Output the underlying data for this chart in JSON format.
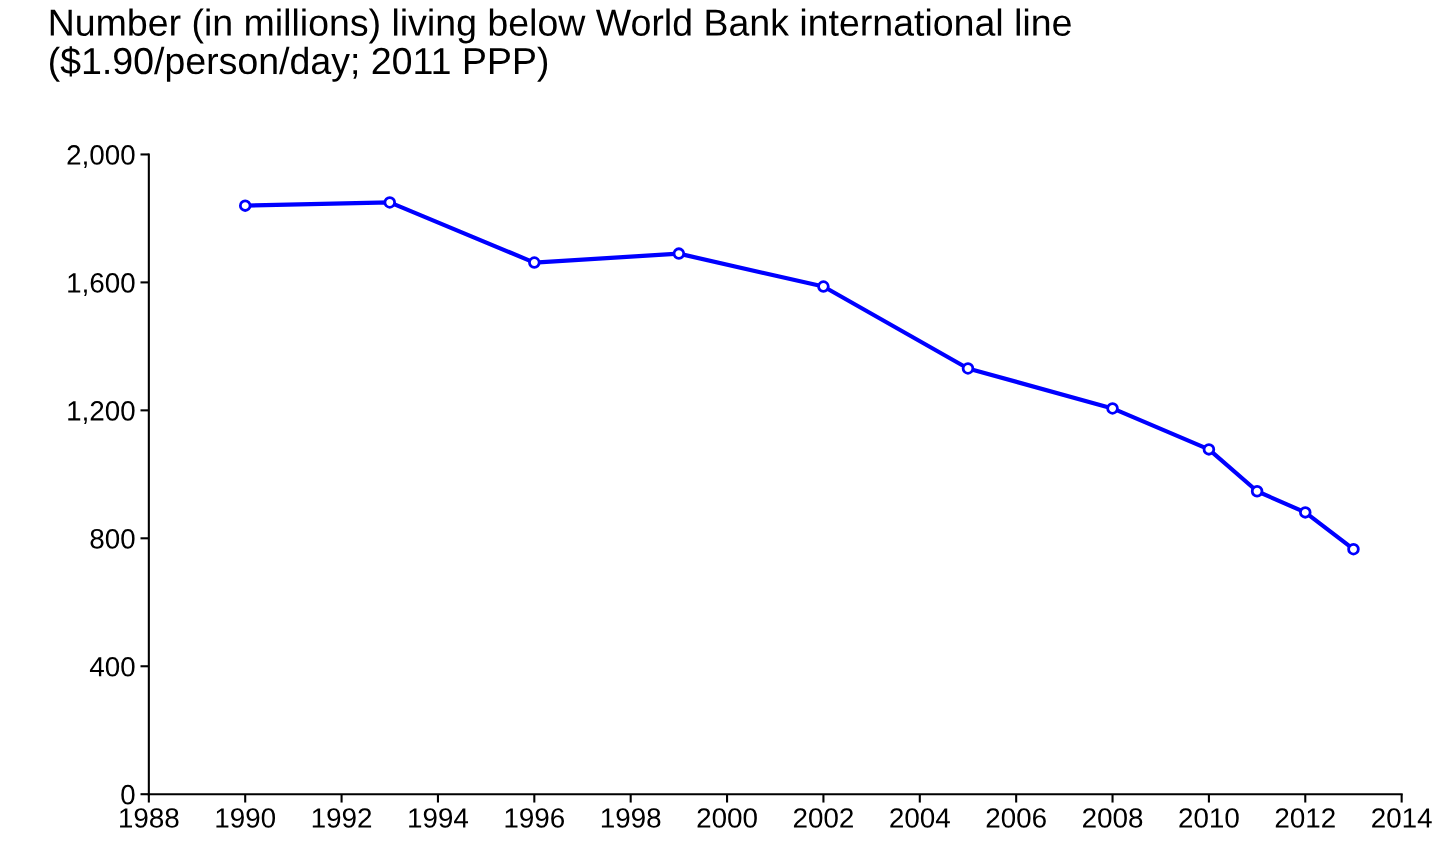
{
  "chart_data": {
    "type": "line",
    "title": "Number (in millions) living below World Bank international line\n($1.90/person/day; 2011 PPP)",
    "x": [
      1990,
      1993,
      1996,
      1999,
      2002,
      2005,
      2008,
      2010,
      2011,
      2012,
      2013
    ],
    "series": [
      {
        "color": "#0000ff",
        "values": [
          1840,
          1850,
          1662,
          1690,
          1587,
          1331,
          1206,
          1078,
          947,
          881,
          766
        ]
      }
    ],
    "xlim": [
      1988,
      2014
    ],
    "xticks": [
      1988,
      1990,
      1992,
      1994,
      1996,
      1998,
      2000,
      2002,
      2004,
      2006,
      2008,
      2010,
      2012,
      2014
    ],
    "ylim": [
      0,
      2000
    ],
    "yticks": [
      0,
      {
        "value": 400,
        "label": "400"
      },
      {
        "value": 800,
        "label": "800"
      },
      {
        "value": 1200,
        "label": "1,200"
      },
      {
        "value": 1600,
        "label": "1,600"
      },
      {
        "value": 2000,
        "label": "2,000"
      }
    ],
    "marker": "circle",
    "line_style": "solid",
    "grid": false
  }
}
